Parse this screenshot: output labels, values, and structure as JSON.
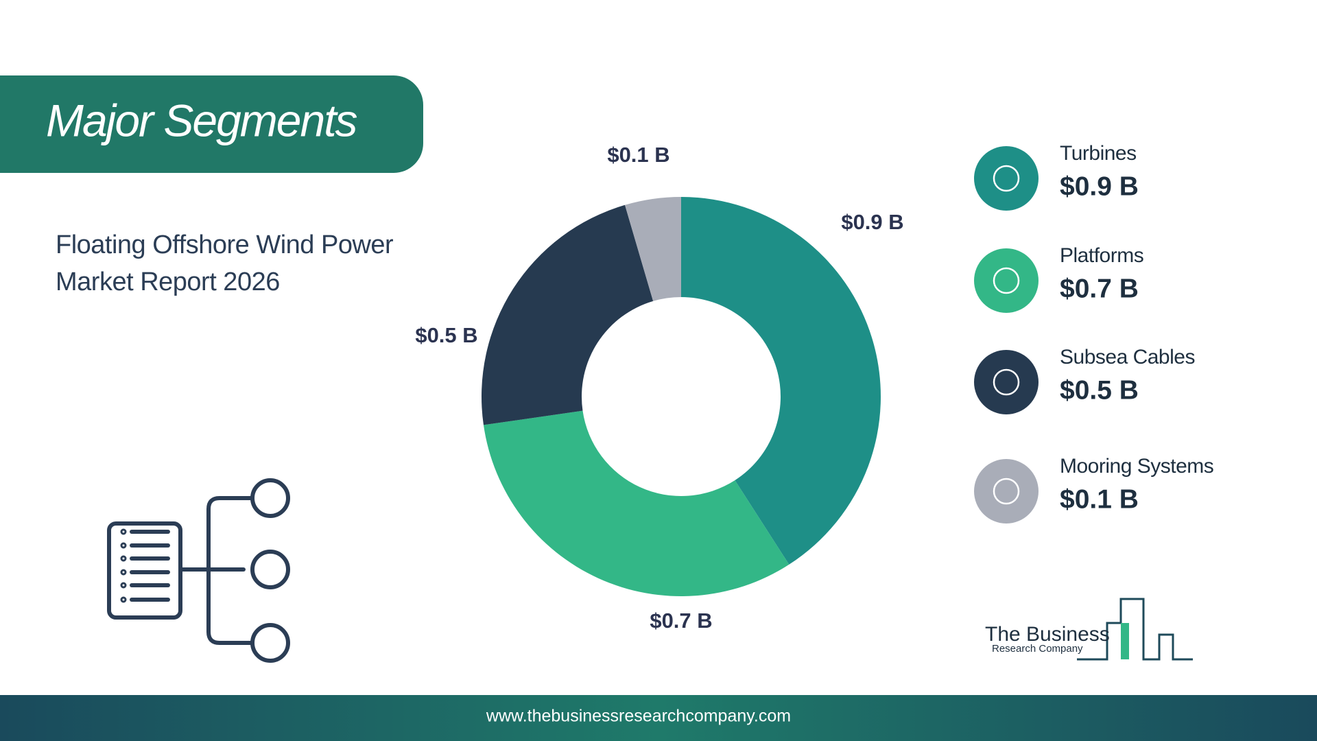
{
  "chart_data": {
    "type": "donut",
    "title": "Major Segments",
    "subtitle": "Floating Offshore Wind Power Market Report 2026",
    "categories": [
      "Turbines",
      "Platforms",
      "Subsea Cables",
      "Mooring Systems"
    ],
    "values": [
      0.9,
      0.7,
      0.5,
      0.1
    ],
    "value_labels": [
      "$0.9 B",
      "$0.7 B",
      "$0.5 B",
      "$0.1 B"
    ],
    "colors": [
      "#1e8f87",
      "#33b787",
      "#263a50",
      "#a9adb8"
    ],
    "legend": "right"
  },
  "logo": {
    "line1": "The Business",
    "line2": "Research Company"
  },
  "footer": {
    "url": "www.thebusinessresearchcompany.com"
  }
}
